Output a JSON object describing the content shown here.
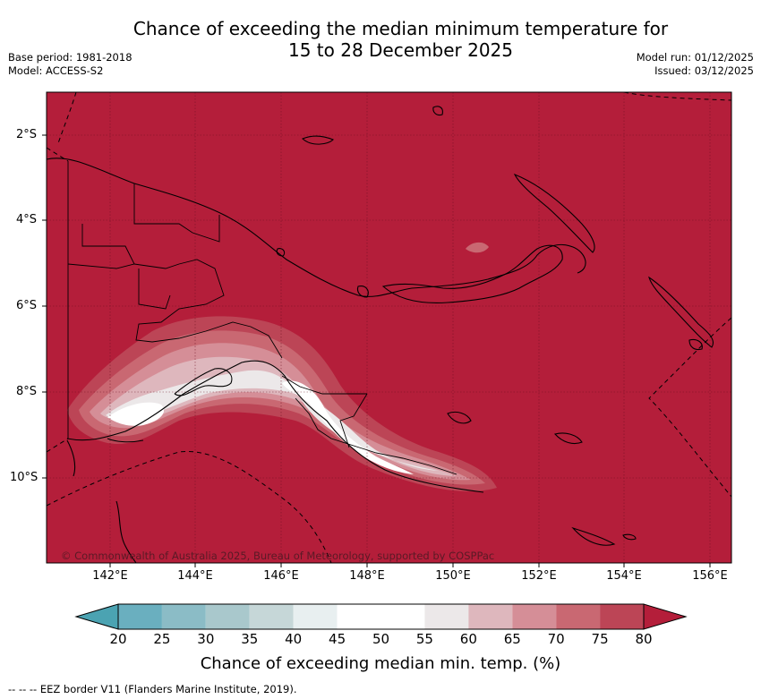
{
  "title": {
    "line1": "Chance of exceeding the median minimum temperature for",
    "line2": "15 to 28 December 2025"
  },
  "meta": {
    "base_period": "Base period: 1981-2018",
    "model": "Model: ACCESS-S2",
    "model_run": "Model run: 01/12/2025",
    "issued": "Issued: 03/12/2025"
  },
  "map": {
    "region": "Papua New Guinea",
    "lat_labels": [
      "2°S",
      "4°S",
      "6°S",
      "8°S",
      "10°S"
    ],
    "lon_labels": [
      "142°E",
      "144°E",
      "146°E",
      "148°E",
      "150°E",
      "152°E",
      "154°E",
      "156°E"
    ],
    "copyright": "© Commonwealth of Australia 2025, Bureau of Meteorology, supported by COSPPac",
    "background_category": "80",
    "colors": {
      "ocean_fill": "#b41e3a",
      "coastline": "#000000",
      "eez_border": "#000000"
    }
  },
  "colorbar": {
    "labels": [
      "20",
      "25",
      "30",
      "35",
      "40",
      "45",
      "50",
      "55",
      "60",
      "65",
      "70",
      "75",
      "80"
    ],
    "colors": [
      "#4ba3b2",
      "#6aafbf",
      "#8bbcc6",
      "#a9c8cc",
      "#c6d7d8",
      "#e8eff0",
      "#ffffff",
      "#ffffff",
      "#ece8e9",
      "#deb7bd",
      "#d58e97",
      "#c96872",
      "#bc4556",
      "#b41e3a"
    ],
    "title": "Chance of exceeding median min. temp. (%)"
  },
  "footnote": "--  --  -- EEZ border V11 (Flanders Marine Institute, 2019)."
}
